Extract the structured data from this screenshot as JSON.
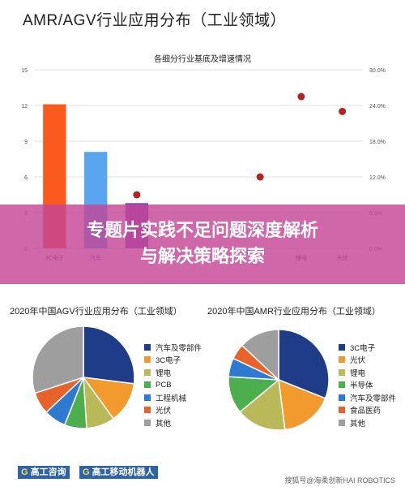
{
  "page": {
    "title": "AMR/AGV行业应用分布（工业领域）",
    "banner_line1": "专题片实践不足问题深度解析",
    "banner_line2": "与解决策略探索",
    "watermark": "搜狐号@海柔创新HAI ROBOTICS",
    "logo1": "高工咨询",
    "logo2": "高工移动机器人"
  },
  "chart_data": [
    {
      "type": "bar",
      "title": "各细分行业基底及增速情况",
      "categories": [
        "3C电子",
        "汽车",
        "",
        "",
        "",
        "",
        "锂电",
        "光伏"
      ],
      "values": [
        12.1,
        8.1,
        3.8,
        null,
        null,
        null,
        null,
        null
      ],
      "colors": [
        "#fa5a1e",
        "#5aa5f0",
        "#7b4bb6",
        "#7b4bb6",
        "#7b4bb6",
        "#7b4bb6",
        "#7b4bb6",
        "#7b4bb6"
      ],
      "growth": [
        null,
        null,
        9.0,
        null,
        null,
        12.0,
        25.5,
        23.0
      ],
      "growth_color": "#b02424",
      "ylim": [
        0,
        15
      ],
      "yticks": [
        "0",
        "3",
        "6",
        "9",
        "12",
        "15"
      ],
      "y2lim": [
        0,
        30
      ],
      "y2ticks": [
        "0.0%",
        "6.0%",
        "12.0%",
        "18.0%",
        "24.0%",
        "30.0%"
      ],
      "grid": true
    },
    {
      "type": "pie",
      "title": "2020年中国AGV行业应用分布（工业领域）",
      "labels": [
        "汽车及零部件",
        "3C电子",
        "锂电",
        "PCB",
        "工程机械",
        "光伏",
        "其他"
      ],
      "values": [
        27,
        13,
        9,
        7,
        7,
        7,
        30
      ],
      "colors": [
        "#1f3c88",
        "#f29a2e",
        "#b9b95a",
        "#4cae4c",
        "#2e7ad1",
        "#e8632a",
        "#9e9e9e"
      ],
      "legend": "right"
    },
    {
      "type": "pie",
      "title": "2020年中国AMR行业应用分布（工业领域）",
      "labels": [
        "3C电子",
        "光伏",
        "锂电",
        "半导体",
        "汽车及零部件",
        "食品医药",
        "其他"
      ],
      "values": [
        31,
        17,
        16,
        12,
        6,
        5,
        13
      ],
      "colors": [
        "#1f3c88",
        "#f29a2e",
        "#b9b95a",
        "#4cae4c",
        "#2e7ad1",
        "#e8632a",
        "#9e9e9e"
      ],
      "legend": "right"
    }
  ]
}
